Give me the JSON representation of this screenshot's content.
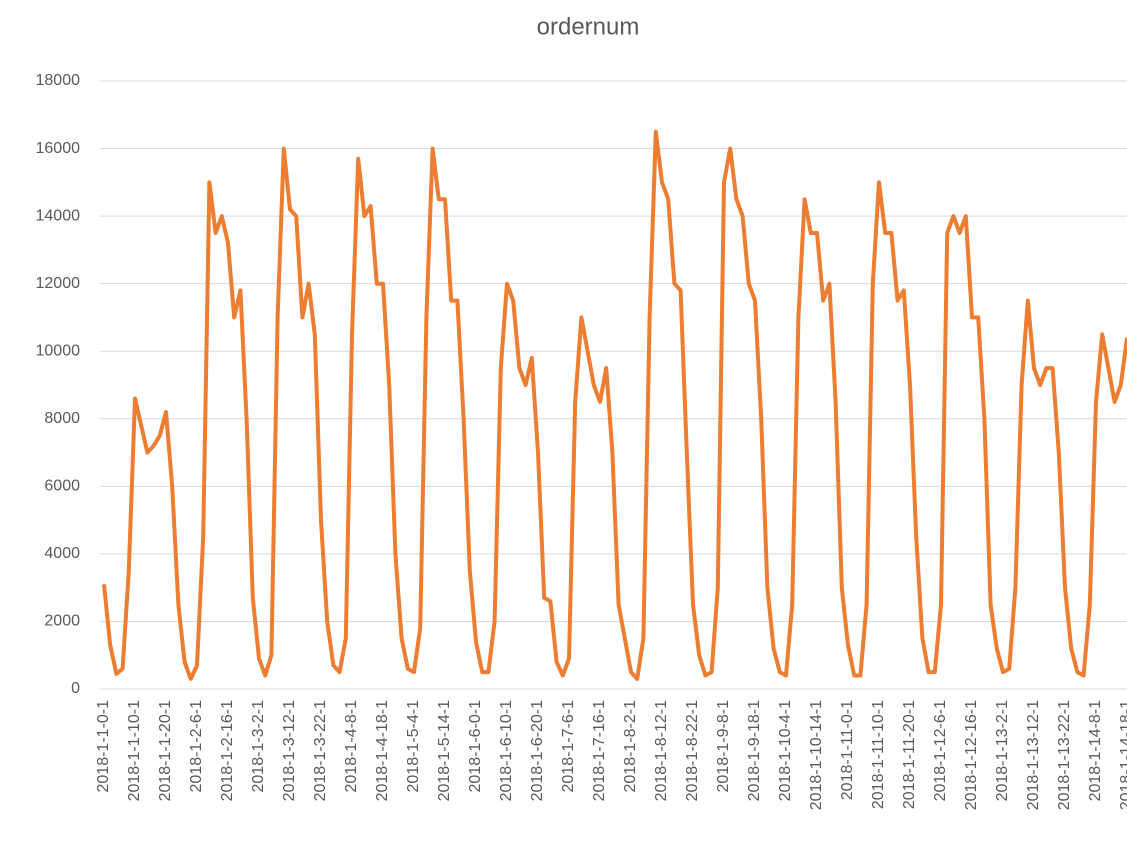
{
  "chart_data": {
    "type": "line",
    "title": "ordernum",
    "categories": [
      "2018-1-1-0-1",
      null,
      null,
      null,
      null,
      "2018-1-1-10-1",
      null,
      null,
      null,
      null,
      "2018-1-1-20-1",
      null,
      null,
      null,
      null,
      "2018-1-2-6-1",
      null,
      null,
      null,
      null,
      "2018-1-2-16-1",
      null,
      null,
      null,
      null,
      "2018-1-3-2-1",
      null,
      null,
      null,
      null,
      "2018-1-3-12-1",
      null,
      null,
      null,
      null,
      "2018-1-3-22-1",
      null,
      null,
      null,
      null,
      "2018-1-4-8-1",
      null,
      null,
      null,
      null,
      "2018-1-4-18-1",
      null,
      null,
      null,
      null,
      "2018-1-5-4-1",
      null,
      null,
      null,
      null,
      "2018-1-5-14-1",
      null,
      null,
      null,
      null,
      "2018-1-6-0-1",
      null,
      null,
      null,
      null,
      "2018-1-6-10-1",
      null,
      null,
      null,
      null,
      "2018-1-6-20-1",
      null,
      null,
      null,
      null,
      "2018-1-7-6-1",
      null,
      null,
      null,
      null,
      "2018-1-7-16-1",
      null,
      null,
      null,
      null,
      "2018-1-8-2-1",
      null,
      null,
      null,
      null,
      "2018-1-8-12-1",
      null,
      null,
      null,
      null,
      "2018-1-8-22-1",
      null,
      null,
      null,
      null,
      "2018-1-9-8-1",
      null,
      null,
      null,
      null,
      "2018-1-9-18-1",
      null,
      null,
      null,
      null,
      "2018-1-10-4-1",
      null,
      null,
      null,
      null,
      "2018-1-10-14-1",
      null,
      null,
      null,
      null,
      "2018-1-11-0-1",
      null,
      null,
      null,
      null,
      "2018-1-11-10-1",
      null,
      null,
      null,
      null,
      "2018-1-11-20-1",
      null,
      null,
      null,
      null,
      "2018-1-12-6-1",
      null,
      null,
      null,
      null,
      "2018-1-12-16-1",
      null,
      null,
      null,
      null,
      "2018-1-13-2-1",
      null,
      null,
      null,
      null,
      "2018-1-13-12-1",
      null,
      null,
      null,
      null,
      "2018-1-13-22-1",
      null,
      null,
      null,
      null,
      "2018-1-14-8-1",
      null,
      null,
      null,
      null,
      "2018-1-14-18-1"
    ],
    "series": [
      {
        "name": "ordernum",
        "color": "#ed7d31",
        "values": [
          3100,
          1300,
          450,
          600,
          3500,
          8600,
          7800,
          7000,
          7200,
          7500,
          8200,
          6000,
          2500,
          800,
          300,
          700,
          4500,
          15000,
          13500,
          14000,
          13200,
          11000,
          11800,
          8000,
          2700,
          900,
          400,
          1000,
          11000,
          16000,
          14200,
          14000,
          11000,
          12000,
          10500,
          5000,
          2000,
          700,
          500,
          1500,
          10500,
          15700,
          14000,
          14300,
          12000,
          12000,
          9000,
          4000,
          1500,
          600,
          500,
          1800,
          11000,
          16000,
          14500,
          14500,
          11500,
          11500,
          8000,
          3500,
          1400,
          500,
          500,
          2000,
          9500,
          12000,
          11500,
          9500,
          9000,
          9800,
          7000,
          2700,
          2600,
          800,
          400,
          900,
          8500,
          11000,
          10000,
          9000,
          8500,
          9500,
          7000,
          2500,
          1500,
          500,
          300,
          1500,
          11000,
          16500,
          15000,
          14500,
          12000,
          11800,
          7000,
          2500,
          1000,
          400,
          500,
          3000,
          15000,
          16000,
          14500,
          14000,
          12000,
          11500,
          8000,
          3000,
          1200,
          500,
          400,
          2500,
          11000,
          14500,
          13500,
          13500,
          11500,
          12000,
          8500,
          3000,
          1300,
          400,
          400,
          2500,
          12000,
          15000,
          13500,
          13500,
          11500,
          11800,
          9000,
          4500,
          1500,
          500,
          500,
          2500,
          13500,
          14000,
          13500,
          14000,
          11000,
          11000,
          8000,
          2500,
          1200,
          500,
          600,
          3000,
          9000,
          11500,
          9500,
          9000,
          9500,
          9500,
          7000,
          3000,
          1200,
          500,
          400,
          2500,
          8500,
          10500,
          9500,
          8500,
          9000,
          10400
        ]
      }
    ],
    "ylim": [
      0,
      18000
    ],
    "yticks": [
      0,
      2000,
      4000,
      6000,
      8000,
      10000,
      12000,
      14000,
      16000,
      18000
    ],
    "grid": true
  }
}
